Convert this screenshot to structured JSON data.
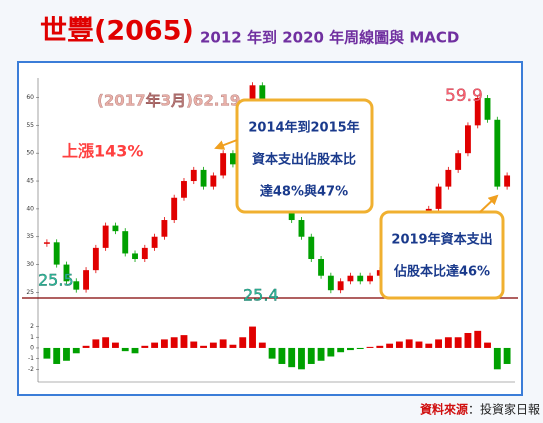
{
  "chart_data": {
    "type": "candlestick",
    "title": "世豐(2065)",
    "subtitle": "2012 年到 2020 年周線圖與 MACD",
    "values": [
      34,
      30,
      27,
      25.5,
      29,
      33,
      37,
      36,
      32,
      31,
      33,
      35,
      38,
      42,
      45,
      47,
      44,
      46,
      50,
      48,
      52,
      62.19,
      52,
      46,
      42,
      38,
      35,
      31,
      28,
      25.4,
      27,
      28,
      27,
      28,
      29,
      31,
      33,
      36,
      38,
      40,
      44,
      47,
      50,
      55,
      59.9,
      56,
      44,
      46
    ],
    "up_color": "#e00000",
    "down_color": "#00a000",
    "ylim": [
      24,
      63.5
    ],
    "yticks": [
      25,
      30,
      35,
      40,
      45,
      50,
      55,
      60
    ],
    "macd": {
      "values": [
        -1,
        -1.5,
        -1.2,
        -0.5,
        0.2,
        0.8,
        1,
        0.5,
        -0.3,
        -0.5,
        0.2,
        0.5,
        0.8,
        1,
        1.2,
        0.6,
        0.2,
        0.5,
        0.8,
        0.3,
        1,
        2,
        0.5,
        -1,
        -1.5,
        -1.8,
        -2,
        -1.5,
        -1.2,
        -0.8,
        -0.4,
        -0.2,
        -0.1,
        0.1,
        0.2,
        0.4,
        0.6,
        0.8,
        0.6,
        0.4,
        0.8,
        1,
        1,
        1.4,
        1.6,
        0.5,
        -2,
        -1.5
      ],
      "ylim": [
        -3,
        4.3
      ],
      "yticks": [
        2,
        1,
        0,
        -1,
        -2
      ]
    },
    "annotations": {
      "peak": "(2017年3月)62.19",
      "rise": "上漲143%",
      "low1": "25.5",
      "low2": "25.4",
      "high": "59.9",
      "box1": [
        "2014年到2015年",
        "資本支出佔股本比",
        "達48%與47%"
      ],
      "box2": [
        "2019年資本支出",
        "佔股本比達46%"
      ]
    },
    "source_label": "資料來源",
    "source_name": "：投資家日報"
  }
}
